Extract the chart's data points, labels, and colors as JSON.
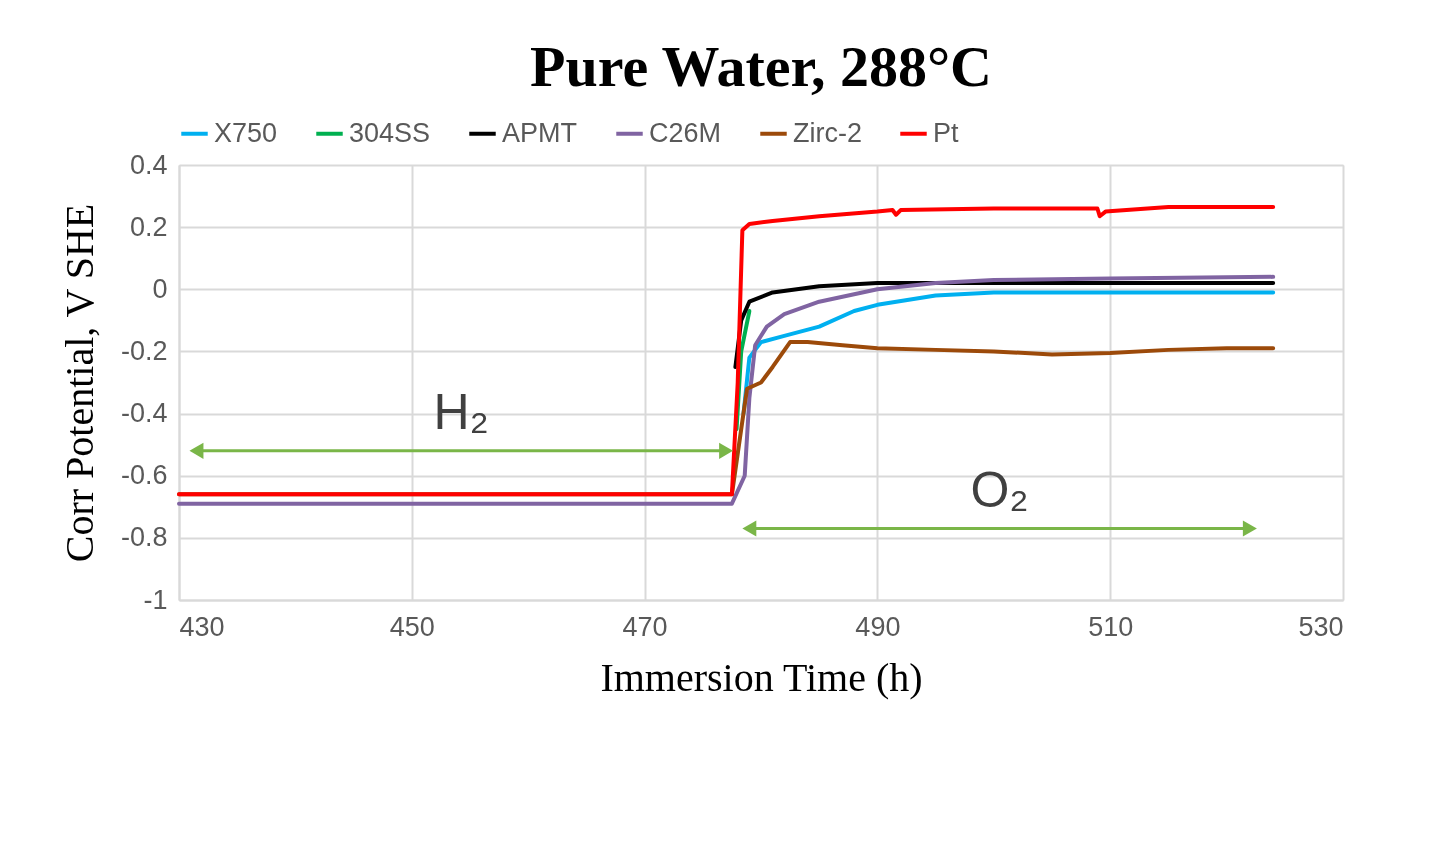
{
  "chart_data": {
    "type": "line",
    "title": "Pure Water, 288°C",
    "xlabel": "Immersion  Time  (h)",
    "ylabel": "Corr Potential,   V SHE",
    "xlim": [
      430,
      530
    ],
    "xticks": [
      430,
      450,
      470,
      490,
      510,
      530
    ],
    "ylim": [
      -1,
      0.4
    ],
    "yticks": [
      -1,
      -0.8,
      -0.6,
      -0.4,
      -0.2,
      0,
      0.2,
      0.4
    ],
    "grid": true,
    "legend": "top",
    "series": [
      {
        "name": "X750",
        "color": "#00b0f0",
        "x": [
          478.5,
          479,
          480,
          482,
          485,
          488,
          490,
          495,
          500,
          510,
          524
        ],
        "values": [
          -0.4,
          -0.22,
          -0.17,
          -0.15,
          -0.12,
          -0.07,
          -0.05,
          -0.02,
          -0.01,
          -0.01,
          -0.01
        ]
      },
      {
        "name": "304SS",
        "color": "#00b050",
        "x": [
          477.9,
          478.3,
          479
        ],
        "values": [
          -0.45,
          -0.2,
          -0.07
        ]
      },
      {
        "name": "APMT",
        "color": "#000000",
        "x": [
          477.8,
          478.3,
          479,
          481,
          485,
          490,
          500,
          524
        ],
        "values": [
          -0.25,
          -0.1,
          -0.04,
          -0.01,
          0.01,
          0.02,
          0.02,
          0.02
        ]
      },
      {
        "name": "C26M",
        "color": "#8064a2",
        "x": [
          430,
          477.5,
          478.6,
          479,
          479.5,
          480.5,
          482,
          485,
          490,
          495,
          500,
          510,
          524
        ],
        "values": [
          -0.69,
          -0.69,
          -0.6,
          -0.35,
          -0.18,
          -0.12,
          -0.08,
          -0.04,
          0.0,
          0.02,
          0.03,
          0.035,
          0.04
        ]
      },
      {
        "name": "Zirc-2",
        "color": "#9c4a0a",
        "x": [
          430,
          477.5,
          478.3,
          478.8,
          480,
          481,
          482.5,
          484,
          487,
          490,
          495,
          500,
          505,
          510,
          515,
          520,
          524
        ],
        "values": [
          -0.66,
          -0.66,
          -0.45,
          -0.32,
          -0.3,
          -0.25,
          -0.17,
          -0.17,
          -0.18,
          -0.19,
          -0.195,
          -0.2,
          -0.21,
          -0.205,
          -0.195,
          -0.19,
          -0.19
        ]
      },
      {
        "name": "Pt",
        "color": "#ff0000",
        "x": [
          430,
          477.5,
          478,
          478.4,
          479,
          481,
          485,
          490,
          491.3,
          491.6,
          492,
          500,
          505,
          508.9,
          509.1,
          509.6,
          515,
          524
        ],
        "values": [
          -0.66,
          -0.66,
          -0.3,
          0.19,
          0.21,
          0.22,
          0.235,
          0.25,
          0.255,
          0.24,
          0.255,
          0.26,
          0.26,
          0.26,
          0.235,
          0.25,
          0.265,
          0.265
        ]
      },
      {
        "color": "#7ab648",
        "marker": "triangle",
        "x": [
          431.5,
          477
        ],
        "values": [
          -0.52,
          -0.52
        ]
      },
      {
        "color": "#7ab648",
        "marker": "triangle",
        "x": [
          479,
          522
        ],
        "values": [
          -0.77,
          -0.77
        ]
      }
    ],
    "annotations": [
      "H₂",
      "O₂"
    ]
  }
}
